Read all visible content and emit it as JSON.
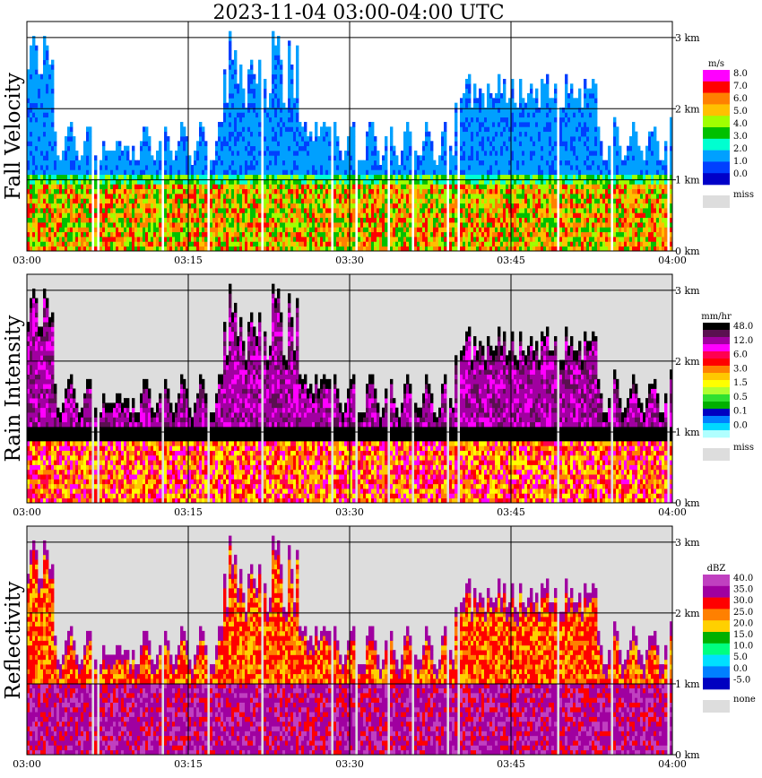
{
  "title": "2023-11-04   03:00-04:00 UTC",
  "chart_data": [
    {
      "type": "heatmap",
      "ylabel": "Fall Velocity",
      "x_ticks": [
        "03:00",
        "03:15",
        "03:30",
        "03:45",
        "04:00"
      ],
      "y_ticks": [
        "3 km",
        "2 km",
        "1 km",
        "0 km"
      ],
      "legend_unit": "m/s",
      "legend_labels": [
        "8.0",
        "7.0",
        "6.0",
        "5.0",
        "4.0",
        "3.0",
        "2.0",
        "1.0",
        "0.0",
        "miss"
      ],
      "colors": [
        "#ff00ff",
        "#ff0000",
        "#ff8000",
        "#ffc000",
        "#a0ff00",
        "#00c000",
        "#00ffd0",
        "#00a0ff",
        "#0040ff",
        "#0000c8"
      ],
      "miss_color": "#dddddd",
      "background": "#ffffff"
    },
    {
      "type": "heatmap",
      "ylabel": "Rain Intensity",
      "x_ticks": [
        "03:00",
        "03:15",
        "03:30",
        "03:45",
        "04:00"
      ],
      "y_ticks": [
        "3 km",
        "2 km",
        "1 km",
        "0 km"
      ],
      "legend_unit": "mm/hr",
      "legend_labels": [
        "48.0",
        "12.0",
        "6.0",
        "3.0",
        "1.5",
        "0.5",
        "0.1",
        "0.0",
        "miss"
      ],
      "colors": [
        "#000000",
        "#5a1050",
        "#a000a0",
        "#ff00ff",
        "#ff0050",
        "#ff0000",
        "#ff8000",
        "#ffc800",
        "#ffff00",
        "#b0ff30",
        "#30e030",
        "#00b000",
        "#0000c0",
        "#0080ff",
        "#00d8ff",
        "#b0ffff"
      ],
      "miss_color": "#dddddd",
      "background": "#dddddd"
    },
    {
      "type": "heatmap",
      "ylabel": "Reflectivity",
      "x_ticks": [
        "03:00",
        "03:15",
        "03:30",
        "03:45",
        "04:00"
      ],
      "y_ticks": [
        "3 km",
        "2 km",
        "1 km",
        "0 km"
      ],
      "legend_unit": "dBZ",
      "legend_labels": [
        "40.0",
        "35.0",
        "30.0",
        "25.0",
        "20.0",
        "15.0",
        "10.0",
        "5.0",
        "0.0",
        "-5.0",
        "none"
      ],
      "colors": [
        "#c040c0",
        "#a000a0",
        "#ff0000",
        "#ff8000",
        "#ffd000",
        "#00b000",
        "#00ff80",
        "#00e0ff",
        "#0080ff",
        "#0000c0"
      ],
      "miss_color": "#dddddd",
      "background": "#dddddd"
    }
  ]
}
